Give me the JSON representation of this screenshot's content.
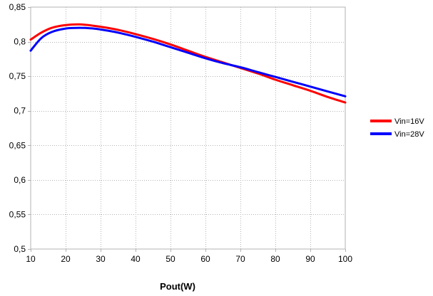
{
  "chart_data": {
    "type": "line",
    "title": "",
    "xlabel": "Pout(W)",
    "ylabel": "",
    "xlim": [
      10,
      100
    ],
    "ylim": [
      0.5,
      0.85
    ],
    "x_ticks": [
      10,
      20,
      30,
      40,
      50,
      60,
      70,
      80,
      90,
      100
    ],
    "y_ticks": [
      "0,5",
      "0,55",
      "0,6",
      "0,65",
      "0,7",
      "0,75",
      "0,8",
      "0,85"
    ],
    "y_tick_values": [
      0.5,
      0.55,
      0.6,
      0.65,
      0.7,
      0.75,
      0.8,
      0.85
    ],
    "grid": true,
    "legend_position": "right",
    "x": [
      10,
      13,
      16,
      20,
      24,
      28,
      32,
      36,
      40,
      45,
      50,
      55,
      60,
      65,
      70,
      75,
      80,
      85,
      90,
      95,
      100
    ],
    "series": [
      {
        "name": "Vin=16V",
        "color": "#ff0000",
        "values": [
          0.803,
          0.813,
          0.82,
          0.824,
          0.825,
          0.823,
          0.82,
          0.816,
          0.811,
          0.804,
          0.796,
          0.787,
          0.778,
          0.77,
          0.762,
          0.754,
          0.745,
          0.737,
          0.729,
          0.72,
          0.712
        ]
      },
      {
        "name": "Vin=28V",
        "color": "#0000ff",
        "values": [
          0.787,
          0.805,
          0.814,
          0.819,
          0.82,
          0.819,
          0.816,
          0.812,
          0.807,
          0.8,
          0.792,
          0.784,
          0.776,
          0.769,
          0.763,
          0.756,
          0.749,
          0.742,
          0.735,
          0.728,
          0.721
        ]
      }
    ]
  }
}
